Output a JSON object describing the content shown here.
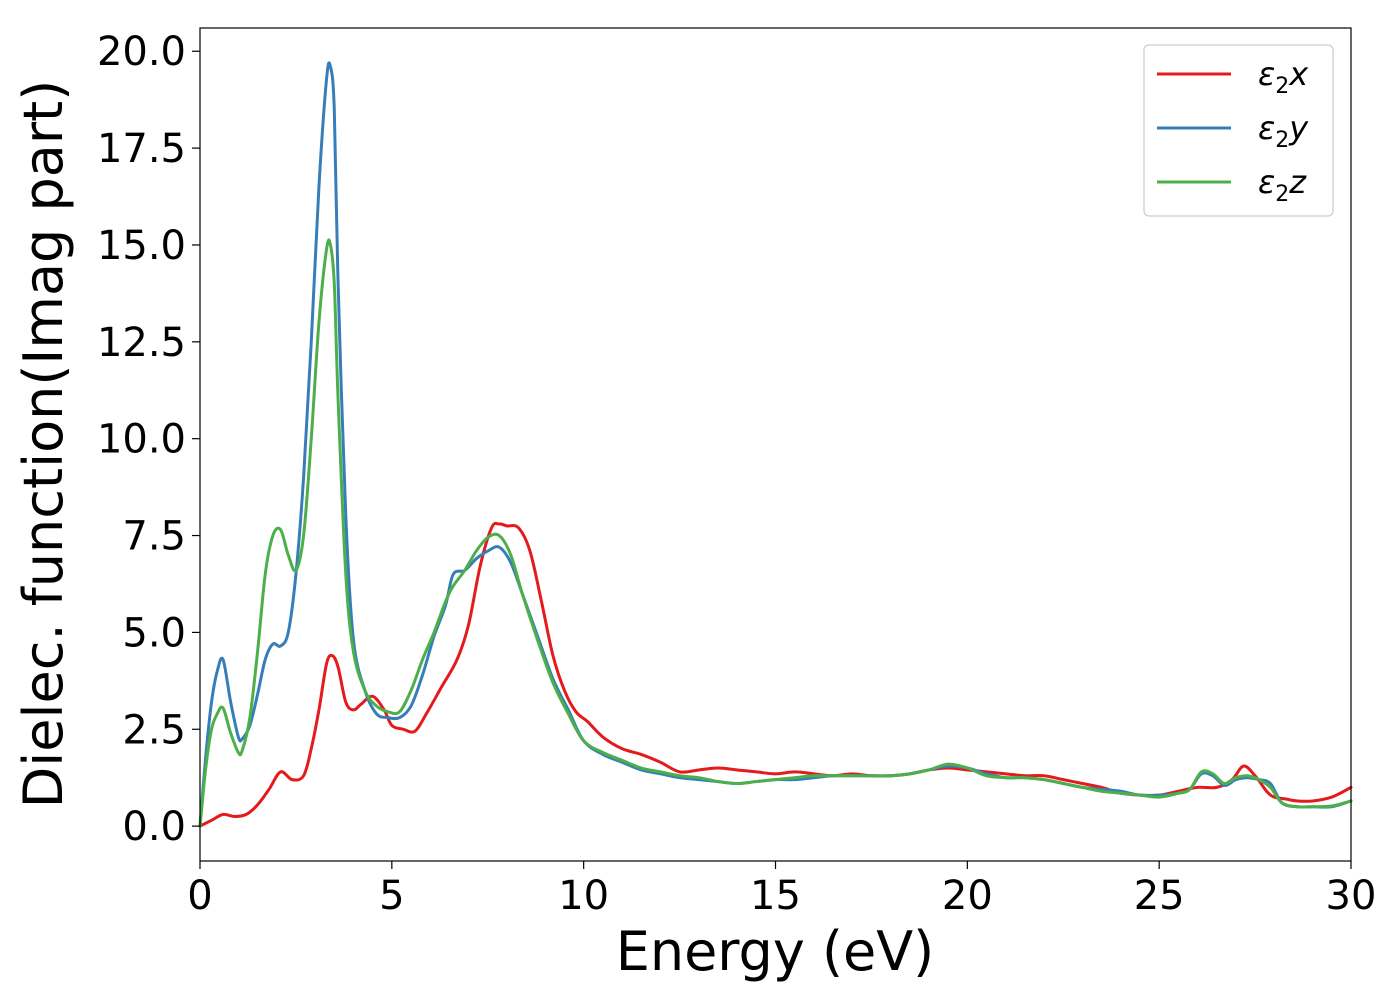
{
  "chart_data": {
    "type": "line",
    "title": "",
    "xlabel": "Energy (eV)",
    "ylabel": "Dielec. function(Imag part)",
    "xlim": [
      0,
      30
    ],
    "ylim": [
      -0.9,
      20.6
    ],
    "xticks": [
      0,
      5,
      10,
      15,
      20,
      25,
      30
    ],
    "xtick_labels": [
      "0",
      "5",
      "10",
      "15",
      "20",
      "25",
      "30"
    ],
    "yticks": [
      0,
      2.5,
      5,
      7.5,
      10,
      12.5,
      15,
      17.5,
      20
    ],
    "ytick_labels": [
      "0.0",
      "2.5",
      "5.0",
      "7.5",
      "10.0",
      "12.5",
      "15.0",
      "17.5",
      "20.0"
    ],
    "grid": false,
    "legend_position": "top-right",
    "series": [
      {
        "name": "ε₂x",
        "legend_base": "ε",
        "legend_sub": "2",
        "legend_var": "x",
        "color": "#e41a1c",
        "x": [
          0,
          0.3,
          0.6,
          0.9,
          1.2,
          1.5,
          1.8,
          2.1,
          2.4,
          2.7,
          2.9,
          3.1,
          3.3,
          3.45,
          3.6,
          3.8,
          4.0,
          4.2,
          4.5,
          4.8,
          5.0,
          5.3,
          5.6,
          5.9,
          6.3,
          6.7,
          7.0,
          7.3,
          7.6,
          7.8,
          8.0,
          8.3,
          8.6,
          8.9,
          9.2,
          9.5,
          9.8,
          10.1,
          10.5,
          11.0,
          11.5,
          12.0,
          12.5,
          13.0,
          13.5,
          14.0,
          14.5,
          15.0,
          15.5,
          16.0,
          16.5,
          17.0,
          17.5,
          18.0,
          18.5,
          19.0,
          19.5,
          20.0,
          20.5,
          21.0,
          21.5,
          22.0,
          22.5,
          23.0,
          23.5,
          24.0,
          24.5,
          25.0,
          25.5,
          26.0,
          26.5,
          26.9,
          27.2,
          27.5,
          27.8,
          28.0,
          28.3,
          28.6,
          29.0,
          29.5,
          30.0
        ],
        "y": [
          0.0,
          0.15,
          0.3,
          0.25,
          0.3,
          0.55,
          0.95,
          1.4,
          1.2,
          1.3,
          2.0,
          3.0,
          4.2,
          4.4,
          4.1,
          3.2,
          3.0,
          3.15,
          3.35,
          3.0,
          2.6,
          2.5,
          2.45,
          2.9,
          3.6,
          4.3,
          5.2,
          6.7,
          7.7,
          7.8,
          7.75,
          7.7,
          7.1,
          5.8,
          4.4,
          3.5,
          2.95,
          2.7,
          2.3,
          2.0,
          1.85,
          1.65,
          1.4,
          1.45,
          1.5,
          1.45,
          1.4,
          1.35,
          1.4,
          1.35,
          1.3,
          1.35,
          1.3,
          1.3,
          1.35,
          1.45,
          1.5,
          1.45,
          1.4,
          1.35,
          1.3,
          1.3,
          1.2,
          1.1,
          1.0,
          0.85,
          0.8,
          0.8,
          0.9,
          1.0,
          1.0,
          1.2,
          1.55,
          1.3,
          0.9,
          0.75,
          0.7,
          0.65,
          0.65,
          0.75,
          1.0
        ]
      },
      {
        "name": "ε₂y",
        "legend_base": "ε",
        "legend_sub": "2",
        "legend_var": "y",
        "color": "#377eb8",
        "x": [
          0,
          0.15,
          0.3,
          0.45,
          0.6,
          0.8,
          1.0,
          1.1,
          1.3,
          1.5,
          1.7,
          1.9,
          2.1,
          2.3,
          2.5,
          2.7,
          2.9,
          3.1,
          3.3,
          3.4,
          3.5,
          3.6,
          3.8,
          4.0,
          4.3,
          4.6,
          4.9,
          5.2,
          5.5,
          5.8,
          6.1,
          6.4,
          6.6,
          6.9,
          7.2,
          7.5,
          7.8,
          8.1,
          8.4,
          8.8,
          9.2,
          9.6,
          10.0,
          10.5,
          11.0,
          11.5,
          12.0,
          12.5,
          13.0,
          13.5,
          14.0,
          14.5,
          15.0,
          15.5,
          16.0,
          16.5,
          17.0,
          17.5,
          18.0,
          18.5,
          19.0,
          19.5,
          20.0,
          20.5,
          21.0,
          21.5,
          22.0,
          22.5,
          23.0,
          23.5,
          24.0,
          24.5,
          25.0,
          25.5,
          25.8,
          26.1,
          26.4,
          26.7,
          27.0,
          27.3,
          27.6,
          27.9,
          28.2,
          28.6,
          29.0,
          29.5,
          30.0
        ],
        "y": [
          0.0,
          1.8,
          3.2,
          4.0,
          4.3,
          3.2,
          2.3,
          2.25,
          2.6,
          3.4,
          4.3,
          4.7,
          4.65,
          5.0,
          6.5,
          9.0,
          12.5,
          16.5,
          19.3,
          19.6,
          18.5,
          14.0,
          8.0,
          4.8,
          3.5,
          2.9,
          2.8,
          2.8,
          3.1,
          3.9,
          4.9,
          5.7,
          6.5,
          6.6,
          6.9,
          7.1,
          7.2,
          6.8,
          6.0,
          4.9,
          3.8,
          3.0,
          2.2,
          1.85,
          1.65,
          1.45,
          1.35,
          1.25,
          1.2,
          1.15,
          1.1,
          1.15,
          1.2,
          1.2,
          1.25,
          1.3,
          1.3,
          1.3,
          1.3,
          1.35,
          1.45,
          1.55,
          1.5,
          1.35,
          1.25,
          1.25,
          1.2,
          1.1,
          1.0,
          0.95,
          0.9,
          0.8,
          0.8,
          0.85,
          0.95,
          1.35,
          1.3,
          1.05,
          1.2,
          1.25,
          1.2,
          1.1,
          0.6,
          0.5,
          0.5,
          0.5,
          0.65
        ]
      },
      {
        "name": "ε₂z",
        "legend_base": "ε",
        "legend_sub": "2",
        "legend_var": "z",
        "color": "#4daf4a",
        "x": [
          0,
          0.15,
          0.3,
          0.45,
          0.6,
          0.8,
          1.0,
          1.1,
          1.3,
          1.5,
          1.7,
          1.9,
          2.1,
          2.3,
          2.5,
          2.7,
          2.9,
          3.1,
          3.3,
          3.4,
          3.5,
          3.6,
          3.8,
          4.0,
          4.3,
          4.6,
          4.9,
          5.2,
          5.5,
          5.8,
          6.1,
          6.4,
          6.6,
          6.9,
          7.2,
          7.5,
          7.8,
          8.1,
          8.4,
          8.8,
          9.2,
          9.6,
          10.0,
          10.5,
          11.0,
          11.5,
          12.0,
          12.5,
          13.0,
          13.5,
          14.0,
          14.5,
          15.0,
          15.5,
          16.0,
          16.5,
          17.0,
          17.5,
          18.0,
          18.5,
          19.0,
          19.5,
          20.0,
          20.5,
          21.0,
          21.5,
          22.0,
          22.5,
          23.0,
          23.5,
          24.0,
          24.5,
          25.0,
          25.5,
          25.8,
          26.1,
          26.4,
          26.7,
          27.0,
          27.3,
          27.6,
          27.9,
          28.2,
          28.6,
          29.0,
          29.5,
          30.0
        ],
        "y": [
          0.0,
          1.5,
          2.5,
          2.9,
          3.05,
          2.4,
          1.9,
          1.95,
          2.8,
          4.5,
          6.5,
          7.5,
          7.65,
          7.0,
          6.6,
          7.5,
          10.0,
          13.0,
          14.9,
          15.0,
          14.0,
          11.0,
          6.5,
          4.5,
          3.5,
          3.1,
          2.95,
          2.95,
          3.5,
          4.3,
          5.0,
          5.8,
          6.2,
          6.6,
          7.1,
          7.45,
          7.5,
          7.0,
          6.0,
          4.8,
          3.7,
          2.9,
          2.2,
          1.9,
          1.7,
          1.5,
          1.4,
          1.3,
          1.25,
          1.15,
          1.1,
          1.15,
          1.2,
          1.25,
          1.3,
          1.3,
          1.3,
          1.3,
          1.3,
          1.35,
          1.45,
          1.6,
          1.5,
          1.3,
          1.25,
          1.25,
          1.2,
          1.1,
          1.0,
          0.9,
          0.85,
          0.8,
          0.75,
          0.85,
          0.95,
          1.4,
          1.35,
          1.1,
          1.25,
          1.3,
          1.2,
          1.0,
          0.6,
          0.5,
          0.5,
          0.52,
          0.65
        ]
      }
    ]
  }
}
